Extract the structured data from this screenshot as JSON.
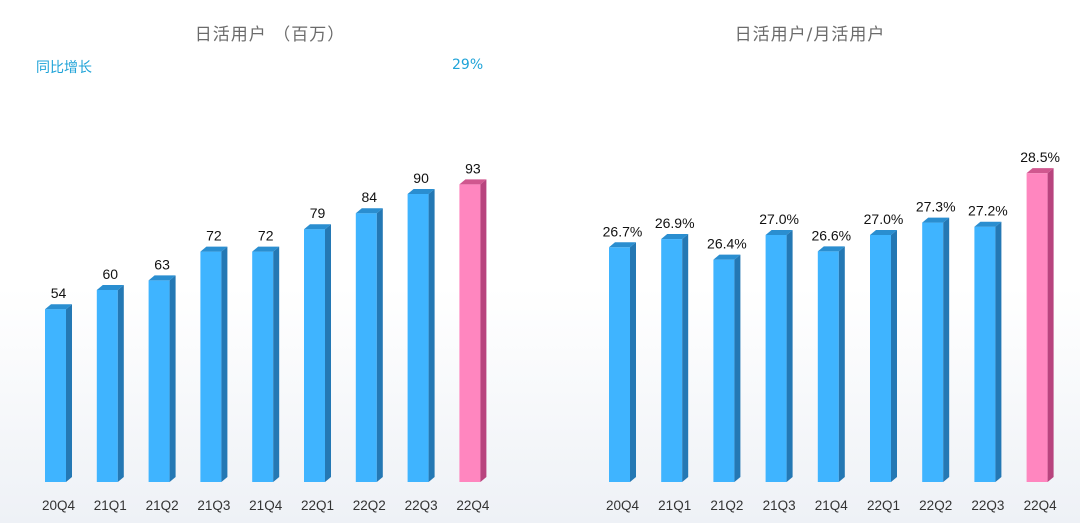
{
  "colors": {
    "bar_front": "#3fb4ff",
    "bar_side": "#2478b4",
    "bar_top": "#2a8ed0",
    "highlight_front": "#ff86bf",
    "highlight_side": "#b8447e",
    "highlight_top": "#d0578f",
    "growth_text": "#1fa3d8"
  },
  "chart_data": [
    {
      "type": "bar",
      "title": "日活用户 （百万）",
      "annotation_label": "同比增长",
      "annotation_value": "29%",
      "categories": [
        "20Q4",
        "21Q1",
        "21Q2",
        "21Q3",
        "21Q4",
        "22Q1",
        "22Q2",
        "22Q3",
        "22Q4"
      ],
      "values": [
        54,
        60,
        63,
        72,
        72,
        79,
        84,
        90,
        93
      ],
      "value_labels": [
        "54",
        "60",
        "63",
        "72",
        "72",
        "79",
        "84",
        "90",
        "93"
      ],
      "highlight_index": 8,
      "ylim": [
        0,
        100
      ],
      "grid": false,
      "legend": "none"
    },
    {
      "type": "bar",
      "title": "日活用户/月活用户",
      "categories": [
        "20Q4",
        "21Q1",
        "21Q2",
        "21Q3",
        "21Q4",
        "22Q1",
        "22Q2",
        "22Q3",
        "22Q4"
      ],
      "values": [
        26.7,
        26.9,
        26.4,
        27.0,
        26.6,
        27.0,
        27.3,
        27.2,
        28.5
      ],
      "value_labels": [
        "26.7%",
        "26.9%",
        "26.4%",
        "27.0%",
        "26.6%",
        "27.0%",
        "27.3%",
        "27.2%",
        "28.5%"
      ],
      "highlight_index": 8,
      "ylim": [
        21,
        29.5
      ],
      "grid": false,
      "legend": "none"
    }
  ]
}
